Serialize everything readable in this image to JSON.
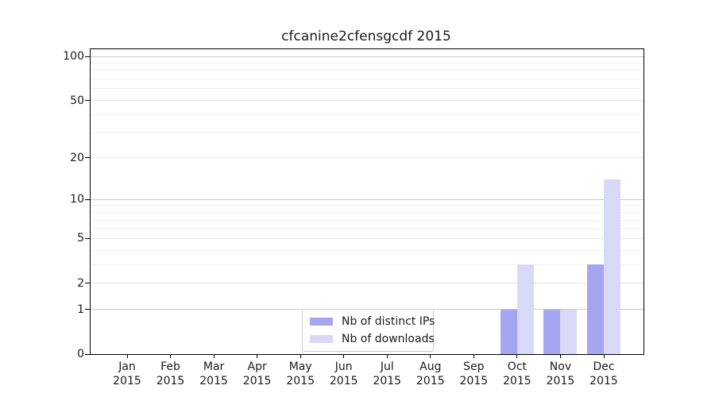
{
  "chart_data": {
    "type": "bar",
    "title": "cfcanine2cfensgcdf 2015",
    "year": "2015",
    "categories": [
      "Jan",
      "Feb",
      "Mar",
      "Apr",
      "May",
      "Jun",
      "Jul",
      "Aug",
      "Sep",
      "Oct",
      "Nov",
      "Dec"
    ],
    "series": [
      {
        "name": "Nb of distinct IPs",
        "color": "#a5a5f2",
        "values": [
          0,
          0,
          0,
          0,
          0,
          0,
          0,
          0,
          0,
          1,
          1,
          3
        ]
      },
      {
        "name": "Nb of downloads",
        "color": "#d9d9f7",
        "values": [
          0,
          0,
          0,
          0,
          0,
          0,
          0,
          0,
          0,
          3,
          1,
          14
        ]
      }
    ],
    "yscale": "log1p",
    "ylim": [
      0,
      100
    ],
    "yticks": [
      0,
      1,
      2,
      5,
      10,
      20,
      50,
      100
    ],
    "major_gridlines": [
      1,
      10,
      100
    ],
    "minor_gridlines": [
      3,
      4,
      6,
      7,
      8,
      9,
      30,
      40,
      60,
      70,
      80,
      90
    ],
    "grid": true,
    "legend_position": "lower center",
    "xlabel": "",
    "ylabel": ""
  }
}
